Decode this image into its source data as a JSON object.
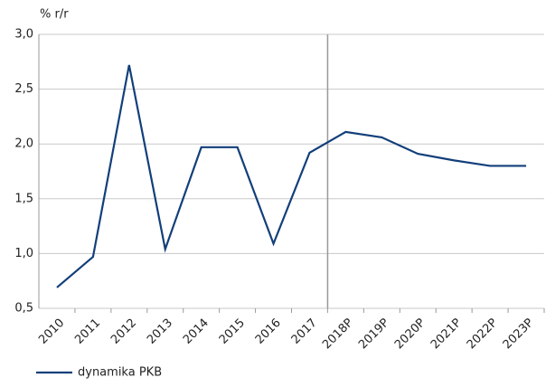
{
  "chart_data": {
    "type": "line",
    "y_label": "% r/r",
    "categories": [
      "2010",
      "2011",
      "2012",
      "2013",
      "2014",
      "2015",
      "2016",
      "2017",
      "2018P",
      "2019P",
      "2020P",
      "2021P",
      "2022P",
      "2023P"
    ],
    "series": [
      {
        "name": "dynamika PKB",
        "color": "#123f7a",
        "values": [
          0.69,
          0.97,
          2.72,
          1.04,
          1.97,
          1.97,
          1.09,
          1.92,
          2.11,
          2.06,
          1.91,
          1.85,
          1.8,
          1.8
        ]
      }
    ],
    "ylim": [
      0.5,
      3.0
    ],
    "yticks": [
      {
        "value": 0.5,
        "label": "0,5"
      },
      {
        "value": 1.0,
        "label": "1,0"
      },
      {
        "value": 1.5,
        "label": "1,5"
      },
      {
        "value": 2.0,
        "label": "2,0"
      },
      {
        "value": 2.5,
        "label": "2,5"
      },
      {
        "value": 3.0,
        "label": "3,0"
      }
    ],
    "grid": true
  }
}
